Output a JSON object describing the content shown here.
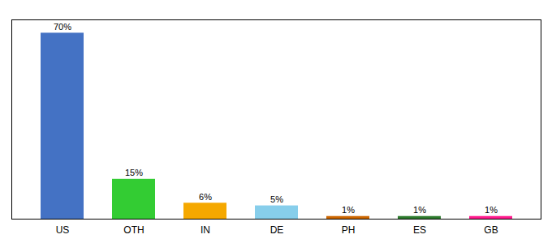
{
  "chart_data": {
    "type": "bar",
    "categories": [
      "US",
      "OTH",
      "IN",
      "DE",
      "PH",
      "ES",
      "GB"
    ],
    "values": [
      70,
      15,
      6,
      5,
      1,
      1,
      1
    ],
    "value_labels": [
      "70%",
      "15%",
      "6%",
      "5%",
      "1%",
      "1%",
      "1%"
    ],
    "colors": [
      "#4472c4",
      "#33cc33",
      "#f5a800",
      "#87ceeb",
      "#cc6600",
      "#2d7a2d",
      "#ff1a8c"
    ],
    "ylim": [
      0,
      75
    ],
    "data_labels": true,
    "tick_labels": "x",
    "grid": false
  }
}
